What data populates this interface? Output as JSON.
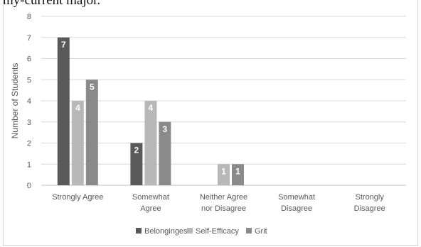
{
  "caption_fragment": "my-current major.",
  "chart_data": {
    "type": "bar",
    "categories": [
      [
        "Strongly Agree"
      ],
      [
        "Somewhat",
        "Agree"
      ],
      [
        "Neither Agree",
        "nor Disagree"
      ],
      [
        "Somewhat",
        "Disagree"
      ],
      [
        "Strongly",
        "Disagree"
      ]
    ],
    "series": [
      {
        "name": "Belongingess",
        "color": "#595959",
        "values": [
          7,
          2,
          0,
          0,
          0
        ]
      },
      {
        "name": "Self-Efficacy",
        "color": "#b8b8b8",
        "values": [
          4,
          4,
          1,
          0,
          0
        ]
      },
      {
        "name": "Grit",
        "color": "#8a8a8a",
        "values": [
          5,
          3,
          1,
          0,
          0
        ]
      }
    ],
    "ylabel": "Number of Students",
    "ylim": [
      0,
      8
    ],
    "yticks": [
      0,
      1,
      2,
      3,
      4,
      5,
      6,
      7,
      8
    ],
    "grid": true,
    "legend_position": "bottom"
  }
}
